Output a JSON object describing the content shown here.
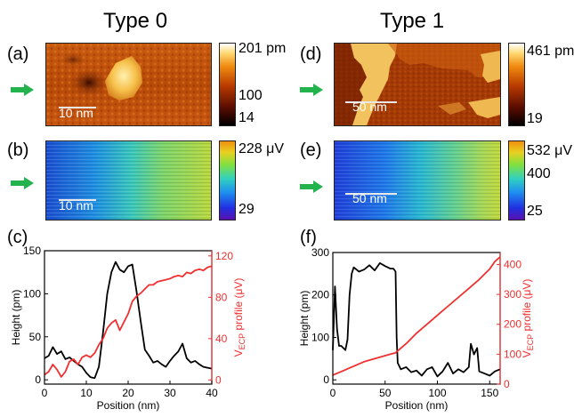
{
  "columns": {
    "left_title": "Type 0",
    "right_title": "Type 1"
  },
  "panels": {
    "a": {
      "label": "(a)",
      "scale_text": "10 nm",
      "colorbar_ticks": [
        "201 pm",
        "100",
        "14"
      ]
    },
    "b": {
      "label": "(b)",
      "scale_text": "10 nm",
      "colorbar_ticks": [
        "228 μV",
        "29"
      ]
    },
    "c": {
      "label": "(c)"
    },
    "d": {
      "label": "(d)",
      "scale_text": "50 nm",
      "colorbar_ticks": [
        "461 pm",
        "19"
      ]
    },
    "e": {
      "label": "(e)",
      "scale_text": "50 nm",
      "colorbar_ticks": [
        "532 μV",
        "400",
        "25"
      ]
    },
    "f": {
      "label": "(f)"
    }
  },
  "colors": {
    "arrow": "#22b34c",
    "height_line": "#000000",
    "vecp_line": "#f03030",
    "vecp_axis": "#f03030"
  },
  "chart_data": [
    {
      "type": "line",
      "panel": "c",
      "xlabel": "Position (nm)",
      "ylabel": "Height (pm)",
      "y2label_main": "V",
      "y2label_sub": "ECP",
      "y2label_rest": " profile (μV)",
      "xlim": [
        0,
        40
      ],
      "ylim": [
        -5,
        150
      ],
      "y2lim": [
        -4,
        125
      ],
      "xticks": [
        0,
        10,
        20,
        30,
        40
      ],
      "yticks": [
        0,
        50,
        100,
        150
      ],
      "y2ticks": [
        0,
        40,
        80,
        120
      ],
      "series": [
        {
          "axis": "left",
          "color": "#000000",
          "x": [
            0,
            1,
            2,
            3,
            4,
            5,
            6,
            7,
            8,
            9,
            10,
            11,
            12,
            13,
            14,
            15,
            16,
            17,
            18,
            19,
            20,
            21,
            22,
            23,
            24,
            25,
            26,
            27,
            28,
            29,
            30,
            31,
            32,
            33,
            34,
            35,
            36,
            37,
            38,
            39,
            40
          ],
          "y": [
            25,
            28,
            38,
            30,
            33,
            24,
            26,
            22,
            18,
            15,
            8,
            3,
            2,
            15,
            55,
            100,
            125,
            137,
            128,
            125,
            132,
            134,
            103,
            68,
            35,
            28,
            20,
            22,
            18,
            15,
            22,
            28,
            33,
            42,
            25,
            20,
            22,
            18,
            15,
            14,
            13
          ]
        },
        {
          "axis": "right",
          "color": "#f03030",
          "x": [
            0,
            1,
            2,
            3,
            4,
            5,
            6,
            7,
            8,
            9,
            10,
            11,
            12,
            13,
            14,
            15,
            16,
            17,
            18,
            19,
            20,
            21,
            22,
            23,
            24,
            25,
            26,
            27,
            28,
            29,
            30,
            31,
            32,
            33,
            34,
            35,
            36,
            37,
            38,
            39,
            40
          ],
          "y": [
            5,
            8,
            15,
            10,
            3,
            8,
            18,
            20,
            15,
            22,
            24,
            22,
            26,
            34,
            40,
            50,
            55,
            58,
            48,
            56,
            64,
            76,
            81,
            84,
            88,
            92,
            92,
            95,
            96,
            97,
            98,
            100,
            101,
            100,
            104,
            103,
            106,
            107,
            106,
            109,
            110
          ]
        }
      ]
    },
    {
      "type": "line",
      "panel": "f",
      "xlabel": "Position (nm)",
      "ylabel": "Height (pm)",
      "y2label_main": "V",
      "y2label_sub": "ECP",
      "y2label_rest": " profile (μV)",
      "xlim": [
        0,
        160
      ],
      "ylim": [
        -10,
        300
      ],
      "y2lim": [
        0,
        440
      ],
      "xticks": [
        0,
        50,
        100,
        150
      ],
      "yticks": [
        0,
        100,
        200,
        300
      ],
      "y2ticks": [
        0,
        100,
        200,
        300,
        400
      ],
      "series": [
        {
          "axis": "left",
          "color": "#000000",
          "x": [
            0,
            2,
            4,
            6,
            8,
            10,
            12,
            14,
            16,
            18,
            20,
            25,
            30,
            35,
            40,
            45,
            50,
            55,
            58,
            60,
            61,
            62,
            65,
            70,
            75,
            80,
            85,
            90,
            95,
            100,
            105,
            110,
            115,
            120,
            125,
            130,
            132,
            135,
            138,
            140,
            145,
            150,
            155,
            160
          ],
          "y": [
            70,
            220,
            120,
            80,
            80,
            75,
            70,
            95,
            200,
            250,
            265,
            255,
            260,
            270,
            258,
            275,
            268,
            262,
            262,
            255,
            100,
            40,
            25,
            30,
            18,
            22,
            10,
            25,
            30,
            8,
            20,
            40,
            15,
            25,
            18,
            30,
            85,
            60,
            75,
            20,
            15,
            10,
            20,
            25
          ]
        },
        {
          "axis": "right",
          "color": "#f03030",
          "x": [
            0,
            10,
            20,
            30,
            40,
            50,
            60,
            70,
            80,
            90,
            100,
            110,
            120,
            130,
            140,
            150,
            155,
            160
          ],
          "y": [
            30,
            45,
            60,
            75,
            85,
            95,
            105,
            135,
            170,
            200,
            230,
            260,
            290,
            320,
            350,
            385,
            410,
            425
          ]
        }
      ]
    }
  ]
}
